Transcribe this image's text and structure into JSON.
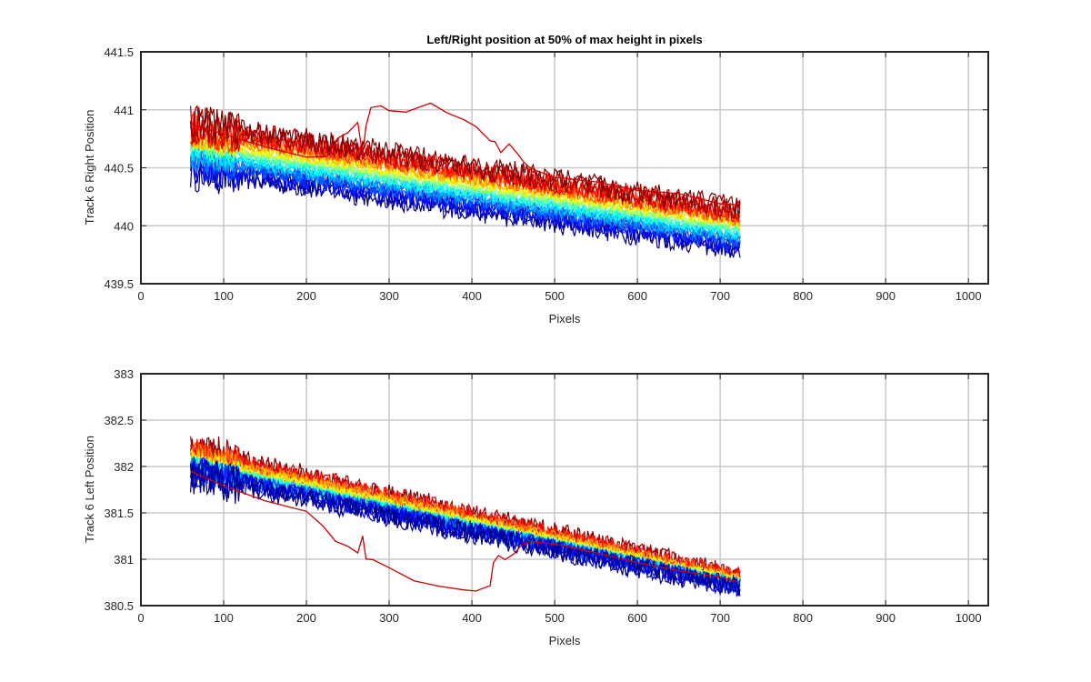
{
  "chart_data": [
    {
      "type": "line",
      "title": "Left/Right position at 50% of max height in pixels",
      "xlabel": "Pixels",
      "ylabel": "Track 6 Right Position",
      "xlim": [
        0,
        1024
      ],
      "ylim": [
        439.5,
        441.5
      ],
      "xticks": [
        0,
        100,
        200,
        300,
        400,
        500,
        600,
        700,
        800,
        900,
        1000
      ],
      "yticks": [
        439.5,
        440,
        440.5,
        441,
        441.5
      ],
      "grid": true,
      "colormap": "jet",
      "band": {
        "x_start": 60,
        "x_end": 724,
        "top_start": 440.9,
        "top_end": 440.15,
        "bottom_start": 440.48,
        "bottom_end": 439.8,
        "noise": 0.06
      },
      "outlier_series": {
        "color": "#cc0000",
        "x": [
          60,
          100,
          150,
          200,
          225,
          240,
          250,
          262,
          268,
          272,
          278,
          290,
          300,
          320,
          350,
          370,
          390,
          405,
          415,
          422,
          428,
          435,
          445,
          455,
          462,
          468,
          475,
          500,
          550,
          600,
          650,
          700,
          724
        ],
        "y": [
          440.88,
          440.8,
          440.7,
          440.6,
          440.6,
          440.75,
          440.8,
          440.9,
          440.62,
          440.88,
          441.0,
          441.05,
          441.0,
          440.98,
          441.05,
          440.98,
          440.92,
          440.85,
          440.8,
          440.75,
          440.72,
          440.65,
          440.7,
          440.62,
          440.55,
          440.5,
          440.48,
          440.43,
          440.37,
          440.32,
          440.26,
          440.2,
          440.18
        ]
      }
    },
    {
      "type": "line",
      "title": "",
      "xlabel": "Pixels",
      "ylabel": "Track 6 Left Position",
      "xlim": [
        0,
        1024
      ],
      "ylim": [
        380.5,
        383
      ],
      "xticks": [
        0,
        100,
        200,
        300,
        400,
        500,
        600,
        700,
        800,
        900,
        1000
      ],
      "yticks": [
        380.5,
        381,
        381.5,
        382,
        382.5,
        383
      ],
      "grid": true,
      "colormap": "jet",
      "band": {
        "x_start": 60,
        "x_end": 724,
        "top_start": 382.25,
        "top_end": 380.85,
        "bottom_start": 381.85,
        "bottom_end": 380.65,
        "noise": 0.07
      },
      "outlier_series": {
        "color": "#cc0000",
        "x": [
          60,
          100,
          150,
          200,
          220,
          235,
          250,
          262,
          268,
          272,
          280,
          300,
          330,
          360,
          390,
          405,
          415,
          422,
          426,
          432,
          440,
          450,
          460,
          470,
          500,
          550,
          600,
          650,
          700,
          724
        ],
        "y": [
          381.95,
          381.8,
          381.65,
          381.5,
          381.35,
          381.2,
          381.15,
          381.05,
          381.25,
          381.0,
          380.98,
          380.9,
          380.78,
          380.72,
          380.68,
          380.67,
          380.7,
          380.72,
          380.95,
          381.05,
          381.0,
          381.05,
          381.15,
          381.2,
          381.15,
          381.05,
          380.95,
          380.88,
          380.8,
          380.75
        ]
      }
    }
  ]
}
